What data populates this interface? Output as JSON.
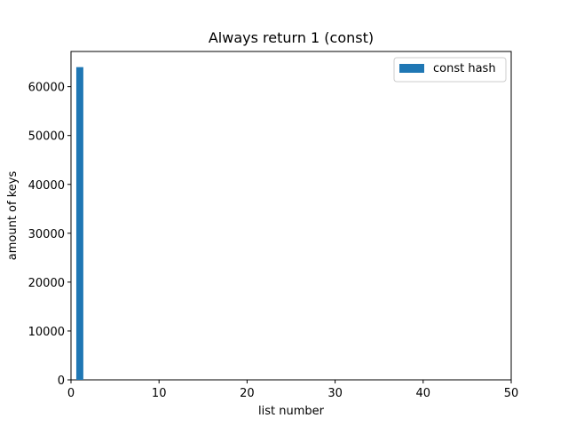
{
  "chart_data": {
    "type": "bar",
    "title": "Always return 1 (const)",
    "xlabel": "list number",
    "ylabel": "amount of keys",
    "xlim": [
      0,
      50
    ],
    "ylim": [
      0,
      67200
    ],
    "xticks": [
      0,
      10,
      20,
      30,
      40,
      50
    ],
    "yticks": [
      0,
      10000,
      20000,
      30000,
      40000,
      50000,
      60000
    ],
    "grid": false,
    "legend_position": "top-right",
    "series": [
      {
        "name": "const hash",
        "color": "#1f77b4",
        "x": [
          1
        ],
        "values": [
          64000
        ]
      }
    ]
  }
}
